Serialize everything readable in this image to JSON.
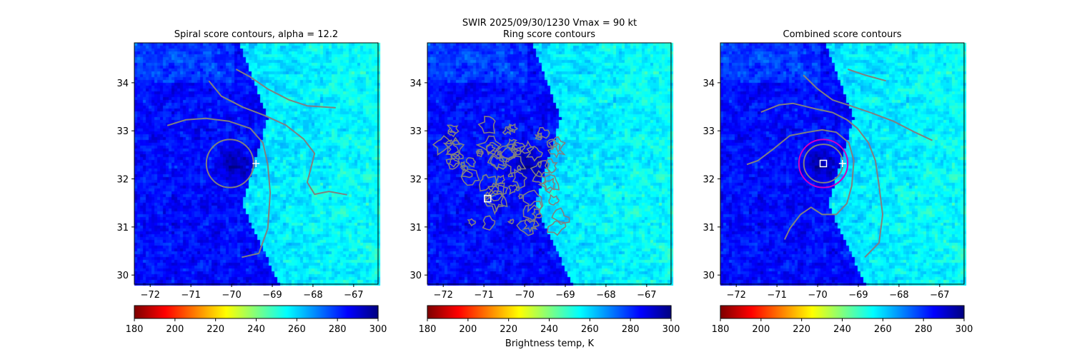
{
  "suptitle": "SWIR  2025/09/30/1230    Vmax = 90 kt",
  "colorbar_label": "Brightness temp, K",
  "colormap": "jet_r",
  "colors": {
    "contour": "#808080",
    "ring_fit": "#d000c0",
    "marker": "#ffffff"
  },
  "chart_data": [
    {
      "type": "heatmap",
      "title": "Spiral score contours, alpha = 12.2",
      "xlim": [
        -72.39,
        -66.4
      ],
      "ylim": [
        29.81,
        34.83
      ],
      "xticks": [
        -72,
        -71,
        -70,
        -69,
        -68,
        -67
      ],
      "yticks": [
        30,
        31,
        32,
        33,
        34
      ],
      "colorbar": {
        "range": [
          180,
          300
        ],
        "ticks": [
          180,
          200,
          220,
          240,
          260,
          280,
          300
        ]
      },
      "contours": [
        [
          [
            -70.56,
            34.04
          ],
          [
            -70.25,
            33.72
          ],
          [
            -69.72,
            33.49
          ],
          [
            -69.19,
            33.32
          ],
          [
            -68.67,
            33.12
          ],
          [
            -68.23,
            32.83
          ],
          [
            -67.96,
            32.53
          ],
          [
            -68.05,
            32.23
          ],
          [
            -68.14,
            31.93
          ],
          [
            -67.96,
            31.68
          ],
          [
            -67.61,
            31.74
          ],
          [
            -67.16,
            31.67
          ]
        ],
        [
          [
            -69.89,
            34.28
          ],
          [
            -69.54,
            34.12
          ],
          [
            -69.11,
            33.87
          ],
          [
            -68.58,
            33.64
          ],
          [
            -68.14,
            33.52
          ],
          [
            -67.44,
            33.48
          ]
        ],
        [
          [
            -71.58,
            33.11
          ],
          [
            -71.12,
            33.23
          ],
          [
            -70.63,
            33.26
          ],
          [
            -70.07,
            33.2
          ],
          [
            -69.54,
            33.05
          ],
          [
            -69.23,
            32.75
          ],
          [
            -69.11,
            32.3
          ],
          [
            -69.05,
            31.71
          ],
          [
            -69.11,
            30.97
          ],
          [
            -69.33,
            30.45
          ],
          [
            -69.75,
            30.37
          ]
        ]
      ],
      "ellipses": [
        {
          "center": [
            -70.04,
            32.32
          ],
          "radius": [
            0.58,
            0.5
          ],
          "color": "contour"
        }
      ],
      "markers": [
        {
          "type": "cross",
          "lon": -69.4,
          "lat": 32.32
        }
      ]
    },
    {
      "type": "heatmap",
      "title": "Ring score contours",
      "xlim": [
        -72.39,
        -66.4
      ],
      "ylim": [
        29.81,
        34.83
      ],
      "xticks": [
        -72,
        -71,
        -70,
        -69,
        -68,
        -67
      ],
      "yticks": [
        30,
        31,
        32,
        33,
        34
      ],
      "colorbar": {
        "range": [
          180,
          300
        ],
        "ticks": [
          180,
          200,
          220,
          240,
          260,
          280,
          300
        ]
      },
      "noisy_contour_region": {
        "lon": [
          -72.0,
          -69.0
        ],
        "lat": [
          31.0,
          33.2
        ]
      },
      "markers": [
        {
          "type": "square",
          "lon": -70.91,
          "lat": 31.59
        }
      ]
    },
    {
      "type": "heatmap",
      "title": "Combined score contours",
      "xlim": [
        -72.39,
        -66.4
      ],
      "ylim": [
        29.81,
        34.83
      ],
      "xticks": [
        -72,
        -71,
        -70,
        -69,
        -68,
        -67
      ],
      "yticks": [
        30,
        31,
        32,
        33,
        34
      ],
      "colorbar": {
        "range": [
          180,
          300
        ],
        "ticks": [
          180,
          200,
          220,
          240,
          260,
          280,
          300
        ]
      },
      "contours": [
        [
          [
            -70.35,
            34.16
          ],
          [
            -70.0,
            33.87
          ],
          [
            -69.63,
            33.64
          ],
          [
            -69.19,
            33.52
          ],
          [
            -68.67,
            33.37
          ],
          [
            -68.14,
            33.2
          ],
          [
            -67.61,
            32.97
          ],
          [
            -67.18,
            32.8
          ]
        ],
        [
          [
            -69.26,
            34.28
          ],
          [
            -68.84,
            34.16
          ],
          [
            -68.32,
            34.04
          ]
        ],
        [
          [
            -71.39,
            33.39
          ],
          [
            -70.95,
            33.54
          ],
          [
            -70.6,
            33.57
          ],
          [
            -70.07,
            33.46
          ],
          [
            -69.63,
            33.38
          ],
          [
            -69.28,
            33.23
          ],
          [
            -69.02,
            33.05
          ],
          [
            -68.75,
            32.75
          ],
          [
            -68.58,
            32.38
          ],
          [
            -68.49,
            31.86
          ],
          [
            -68.4,
            31.26
          ],
          [
            -68.49,
            30.67
          ],
          [
            -68.84,
            30.37
          ]
        ],
        [
          [
            -71.74,
            32.3
          ],
          [
            -71.47,
            32.38
          ],
          [
            -71.12,
            32.6
          ],
          [
            -70.68,
            32.9
          ],
          [
            -70.25,
            32.97
          ],
          [
            -69.89,
            33.02
          ],
          [
            -69.54,
            32.97
          ],
          [
            -69.23,
            32.75
          ],
          [
            -69.11,
            32.38
          ],
          [
            -69.16,
            31.86
          ],
          [
            -69.28,
            31.49
          ],
          [
            -69.54,
            31.26
          ],
          [
            -69.89,
            31.26
          ],
          [
            -70.16,
            31.41
          ],
          [
            -70.42,
            31.26
          ],
          [
            -70.68,
            30.97
          ],
          [
            -70.81,
            30.74
          ]
        ]
      ],
      "ellipses": [
        {
          "center": [
            -69.86,
            32.32
          ],
          "radius": [
            0.6,
            0.5
          ],
          "color": "ring_fit"
        },
        {
          "center": [
            -69.86,
            32.32
          ],
          "radius": [
            0.48,
            0.4
          ],
          "color": "contour"
        }
      ],
      "markers": [
        {
          "type": "square",
          "lon": -69.86,
          "lat": 32.32
        },
        {
          "type": "cross",
          "lon": -69.39,
          "lat": 32.32
        }
      ]
    }
  ]
}
